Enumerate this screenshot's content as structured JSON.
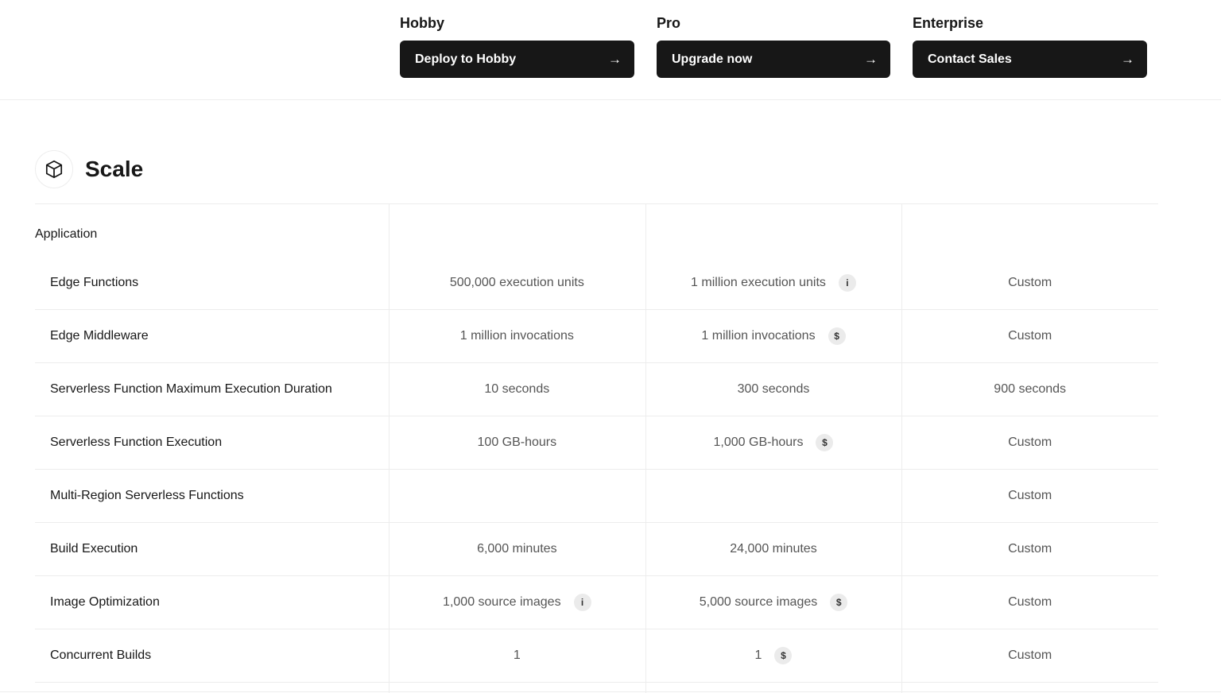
{
  "plans": [
    {
      "name": "Hobby",
      "cta": "Deploy to Hobby"
    },
    {
      "name": "Pro",
      "cta": "Upgrade now"
    },
    {
      "name": "Enterprise",
      "cta": "Contact Sales"
    }
  ],
  "section": {
    "title": "Scale",
    "icon": "cube-icon",
    "group": "Application"
  },
  "rows": [
    {
      "label": "Edge Functions",
      "cells": [
        {
          "text": "500,000 execution units"
        },
        {
          "text": "1 million execution units",
          "badge": "i"
        },
        {
          "text": "Custom"
        }
      ]
    },
    {
      "label": "Edge Middleware",
      "cells": [
        {
          "text": "1 million invocations"
        },
        {
          "text": "1 million invocations",
          "badge": "$"
        },
        {
          "text": "Custom"
        }
      ]
    },
    {
      "label": "Serverless Function Maximum Execution Duration",
      "cells": [
        {
          "text": "10 seconds"
        },
        {
          "text": "300 seconds"
        },
        {
          "text": "900 seconds"
        }
      ]
    },
    {
      "label": "Serverless Function Execution",
      "cells": [
        {
          "text": "100 GB-hours"
        },
        {
          "text": "1,000 GB-hours",
          "badge": "$"
        },
        {
          "text": "Custom"
        }
      ]
    },
    {
      "label": "Multi-Region Serverless Functions",
      "cells": [
        {
          "text": ""
        },
        {
          "text": ""
        },
        {
          "text": "Custom"
        }
      ]
    },
    {
      "label": "Build Execution",
      "cells": [
        {
          "text": "6,000 minutes"
        },
        {
          "text": "24,000 minutes"
        },
        {
          "text": "Custom"
        }
      ]
    },
    {
      "label": "Image Optimization",
      "cells": [
        {
          "text": "1,000 source images",
          "badge": "i"
        },
        {
          "text": "5,000 source images",
          "badge": "$"
        },
        {
          "text": "Custom"
        }
      ]
    },
    {
      "label": "Concurrent Builds",
      "cells": [
        {
          "text": "1"
        },
        {
          "text": "1",
          "badge": "$"
        },
        {
          "text": "Custom"
        }
      ]
    }
  ]
}
